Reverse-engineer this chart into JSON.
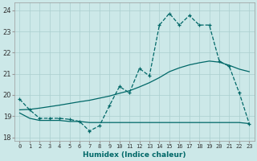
{
  "xlabel": "Humidex (Indice chaleur)",
  "bg_color": "#cce8e8",
  "grid_color": "#aacfcf",
  "line_color": "#006868",
  "xlim": [
    -0.5,
    23.5
  ],
  "ylim": [
    17.85,
    24.35
  ],
  "yticks": [
    18,
    19,
    20,
    21,
    22,
    23,
    24
  ],
  "xticks": [
    0,
    1,
    2,
    3,
    4,
    5,
    6,
    7,
    8,
    9,
    10,
    11,
    12,
    13,
    14,
    15,
    16,
    17,
    18,
    19,
    20,
    21,
    22,
    23
  ],
  "line1_x": [
    0,
    1,
    2,
    3,
    4,
    5,
    6,
    7,
    8,
    9,
    10,
    11,
    12,
    13,
    14,
    15,
    16,
    17,
    18,
    19,
    20,
    21,
    22,
    23
  ],
  "line1_y": [
    19.8,
    19.3,
    18.9,
    18.9,
    18.9,
    18.85,
    18.75,
    18.3,
    18.55,
    19.5,
    20.4,
    20.1,
    21.25,
    20.9,
    23.3,
    23.85,
    23.3,
    23.75,
    23.3,
    23.3,
    21.6,
    21.35,
    20.1,
    18.65
  ],
  "line2_x": [
    0,
    1,
    2,
    3,
    4,
    5,
    6,
    7,
    8,
    9,
    10,
    11,
    12,
    13,
    14,
    15,
    16,
    17,
    18,
    19,
    20,
    21,
    22,
    23
  ],
  "line2_y": [
    19.15,
    18.9,
    18.8,
    18.8,
    18.8,
    18.75,
    18.75,
    18.7,
    18.7,
    18.7,
    18.7,
    18.7,
    18.7,
    18.7,
    18.7,
    18.7,
    18.7,
    18.7,
    18.7,
    18.7,
    18.7,
    18.7,
    18.7,
    18.65
  ],
  "line3_x": [
    0,
    1,
    2,
    3,
    4,
    5,
    6,
    7,
    8,
    9,
    10,
    11,
    12,
    13,
    14,
    15,
    16,
    17,
    18,
    19,
    20,
    21,
    22,
    23
  ],
  "line3_y": [
    19.3,
    19.32,
    19.38,
    19.45,
    19.52,
    19.6,
    19.68,
    19.75,
    19.85,
    19.95,
    20.08,
    20.2,
    20.38,
    20.58,
    20.82,
    21.1,
    21.28,
    21.42,
    21.52,
    21.6,
    21.55,
    21.4,
    21.22,
    21.1
  ]
}
